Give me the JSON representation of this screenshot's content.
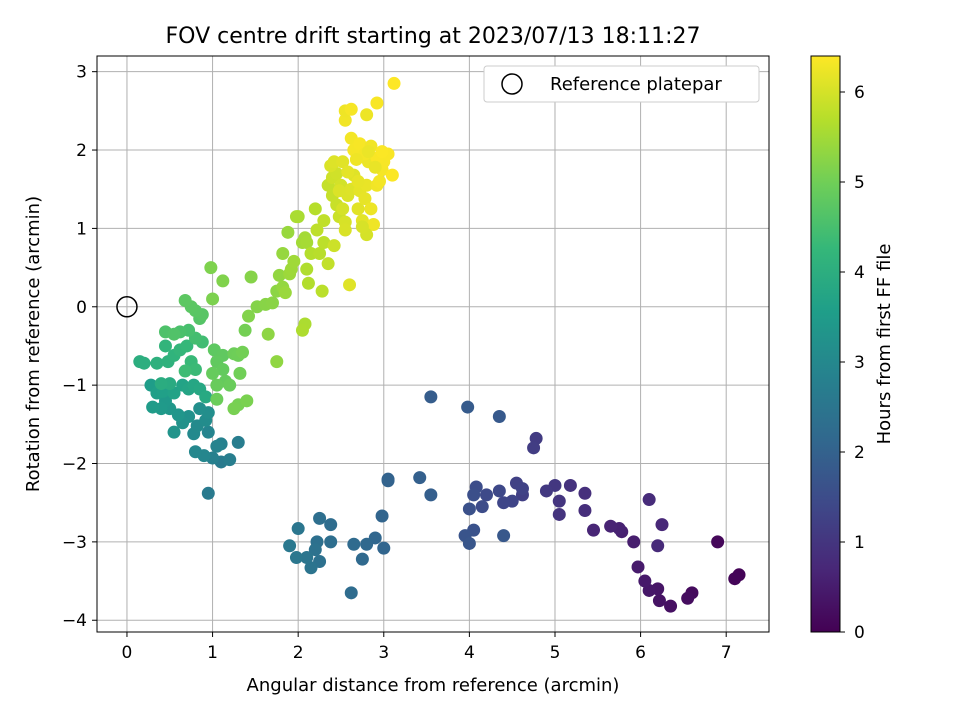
{
  "chart_data": {
    "type": "scatter",
    "title": "FOV centre drift starting at 2023/07/13 18:11:27",
    "xlabel": "Angular distance from reference (arcmin)",
    "ylabel": "Rotation from reference (arcmin)",
    "xlim": [
      -0.35,
      7.5
    ],
    "ylim": [
      -4.15,
      3.2
    ],
    "xticks": [
      0,
      1,
      2,
      3,
      4,
      5,
      6,
      7
    ],
    "yticks": [
      -4,
      -3,
      -2,
      -1,
      0,
      1,
      2,
      3
    ],
    "grid": true,
    "legend": {
      "position": "top-right",
      "entries": [
        "Reference platepar"
      ]
    },
    "reference_point": {
      "x": 0,
      "y": 0,
      "label": "Reference platepar"
    },
    "colorbar": {
      "label": "Hours from first FF file",
      "colormap": "viridis",
      "range": [
        0,
        6.4
      ],
      "ticks": [
        0,
        1,
        2,
        3,
        4,
        5,
        6
      ]
    },
    "colormap_stops": [
      "#440154",
      "#482878",
      "#3e4989",
      "#31688e",
      "#26828e",
      "#1f9e89",
      "#35b779",
      "#6ece58",
      "#b5de2b",
      "#fde725"
    ],
    "series": [
      {
        "points": [
          [
            7.15,
            -3.42,
            0.05
          ],
          [
            7.1,
            -3.47,
            0.08
          ],
          [
            6.9,
            -3.0,
            0.12
          ],
          [
            6.6,
            -3.65,
            0.18
          ],
          [
            6.55,
            -3.72,
            0.22
          ],
          [
            6.35,
            -3.82,
            0.28
          ],
          [
            6.22,
            -3.75,
            0.32
          ],
          [
            6.2,
            -3.6,
            0.36
          ],
          [
            6.1,
            -3.62,
            0.4
          ],
          [
            6.05,
            -3.5,
            0.44
          ],
          [
            5.97,
            -3.32,
            0.48
          ],
          [
            5.92,
            -3.0,
            0.52
          ],
          [
            5.78,
            -2.87,
            0.56
          ],
          [
            5.75,
            -2.83,
            0.6
          ],
          [
            5.65,
            -2.8,
            0.64
          ],
          [
            5.45,
            -2.85,
            0.68
          ],
          [
            6.25,
            -2.78,
            0.72
          ],
          [
            6.2,
            -3.05,
            0.76
          ],
          [
            6.1,
            -2.46,
            0.8
          ],
          [
            5.35,
            -2.6,
            0.84
          ],
          [
            5.35,
            -2.38,
            0.88
          ],
          [
            5.18,
            -2.28,
            0.92
          ],
          [
            5.05,
            -2.65,
            0.96
          ],
          [
            5.05,
            -2.48,
            1.0
          ],
          [
            5.0,
            -2.28,
            1.04
          ],
          [
            4.9,
            -2.35,
            1.08
          ],
          [
            4.78,
            -1.68,
            1.12
          ],
          [
            4.75,
            -1.8,
            1.16
          ],
          [
            4.62,
            -2.4,
            1.2
          ],
          [
            4.55,
            -2.25,
            1.24
          ],
          [
            4.62,
            -2.32,
            1.28
          ],
          [
            4.5,
            -2.48,
            1.32
          ],
          [
            4.4,
            -2.5,
            1.36
          ],
          [
            4.35,
            -2.35,
            1.4
          ],
          [
            4.2,
            -2.4,
            1.44
          ],
          [
            4.15,
            -2.55,
            1.48
          ],
          [
            4.08,
            -2.3,
            1.52
          ],
          [
            4.05,
            -2.4,
            1.56
          ],
          [
            4.0,
            -2.58,
            1.6
          ],
          [
            4.05,
            -2.85,
            1.64
          ],
          [
            3.95,
            -2.92,
            1.68
          ],
          [
            4.0,
            -3.02,
            1.72
          ],
          [
            4.4,
            -2.92,
            1.76
          ],
          [
            4.35,
            -1.4,
            1.8
          ],
          [
            3.98,
            -1.28,
            1.84
          ],
          [
            3.55,
            -1.15,
            1.88
          ],
          [
            3.55,
            -2.4,
            1.92
          ],
          [
            3.42,
            -2.18,
            1.96
          ],
          [
            3.05,
            -2.2,
            2.0
          ],
          [
            3.05,
            -2.22,
            2.03
          ],
          [
            2.98,
            -2.67,
            2.06
          ],
          [
            3.0,
            -3.08,
            2.09
          ],
          [
            2.9,
            -2.95,
            2.12
          ],
          [
            2.8,
            -3.03,
            2.15
          ],
          [
            2.75,
            -3.22,
            2.18
          ],
          [
            2.65,
            -3.03,
            2.21
          ],
          [
            2.62,
            -3.65,
            2.24
          ],
          [
            2.38,
            -2.78,
            2.27
          ],
          [
            2.38,
            -3.0,
            2.3
          ],
          [
            2.25,
            -2.7,
            2.33
          ],
          [
            2.22,
            -3.0,
            2.36
          ],
          [
            2.25,
            -3.25,
            2.39
          ],
          [
            2.2,
            -3.1,
            2.42
          ],
          [
            2.15,
            -3.33,
            2.45
          ],
          [
            2.1,
            -3.2,
            2.48
          ],
          [
            2.0,
            -2.83,
            2.51
          ],
          [
            1.98,
            -3.2,
            2.54
          ],
          [
            1.9,
            -3.05,
            2.57
          ],
          [
            0.95,
            -2.38,
            2.62
          ],
          [
            1.1,
            -1.98,
            2.66
          ],
          [
            1.3,
            -1.73,
            2.7
          ],
          [
            1.2,
            -1.95,
            2.74
          ],
          [
            1.0,
            -1.93,
            2.78
          ],
          [
            1.1,
            -1.75,
            2.82
          ],
          [
            1.05,
            -1.78,
            2.86
          ],
          [
            0.95,
            -1.6,
            2.9
          ],
          [
            0.9,
            -1.9,
            2.94
          ],
          [
            0.8,
            -1.85,
            2.98
          ],
          [
            0.78,
            -1.62,
            3.02
          ],
          [
            0.82,
            -1.52,
            3.06
          ],
          [
            0.92,
            -1.45,
            3.1
          ],
          [
            0.95,
            -1.35,
            3.14
          ],
          [
            0.85,
            -1.3,
            3.18
          ],
          [
            0.72,
            -1.4,
            3.22
          ],
          [
            0.65,
            -1.48,
            3.26
          ],
          [
            0.55,
            -1.6,
            3.3
          ],
          [
            0.6,
            -1.38,
            3.34
          ],
          [
            0.5,
            -1.3,
            3.38
          ],
          [
            0.45,
            -1.2,
            3.42
          ],
          [
            0.4,
            -1.3,
            3.46
          ],
          [
            0.3,
            -1.28,
            3.5
          ],
          [
            0.28,
            -1.0,
            3.54
          ],
          [
            0.35,
            -1.1,
            3.58
          ],
          [
            0.42,
            -1.08,
            3.62
          ],
          [
            0.55,
            -1.1,
            3.66
          ],
          [
            0.65,
            -1.0,
            3.7
          ],
          [
            0.72,
            -1.05,
            3.74
          ],
          [
            0.78,
            -1.0,
            3.78
          ],
          [
            0.85,
            -1.05,
            3.82
          ],
          [
            0.92,
            -1.15,
            3.86
          ],
          [
            0.5,
            -0.98,
            3.9
          ],
          [
            0.4,
            -0.98,
            3.94
          ],
          [
            0.15,
            -0.7,
            3.98
          ],
          [
            0.2,
            -0.72,
            4.02
          ],
          [
            0.35,
            -0.72,
            4.06
          ],
          [
            0.48,
            -0.7,
            4.1
          ],
          [
            0.55,
            -0.62,
            4.14
          ],
          [
            0.45,
            -0.5,
            4.18
          ],
          [
            0.62,
            -0.55,
            4.22
          ],
          [
            0.7,
            -0.5,
            4.26
          ],
          [
            0.75,
            -0.7,
            4.3
          ],
          [
            0.8,
            -0.8,
            4.34
          ],
          [
            0.68,
            -0.82,
            4.38
          ],
          [
            0.88,
            -0.45,
            4.42
          ],
          [
            0.8,
            -0.4,
            4.46
          ],
          [
            0.72,
            -0.3,
            4.5
          ],
          [
            0.62,
            -0.32,
            4.54
          ],
          [
            0.45,
            -0.32,
            4.58
          ],
          [
            0.55,
            -0.35,
            4.62
          ],
          [
            0.85,
            -0.15,
            4.66
          ],
          [
            0.88,
            -0.1,
            4.7
          ],
          [
            0.8,
            -0.05,
            4.72
          ],
          [
            0.75,
            0.0,
            4.74
          ],
          [
            0.68,
            0.08,
            4.76
          ],
          [
            1.02,
            -0.55,
            4.78
          ],
          [
            1.12,
            -0.62,
            4.8
          ],
          [
            1.05,
            -0.7,
            4.82
          ],
          [
            1.12,
            -0.8,
            4.84
          ],
          [
            1.15,
            -0.95,
            4.86
          ],
          [
            1.0,
            -0.85,
            4.88
          ],
          [
            1.05,
            -1.0,
            4.9
          ],
          [
            1.2,
            -1.0,
            4.92
          ],
          [
            1.05,
            -1.18,
            4.94
          ],
          [
            1.25,
            -0.6,
            4.96
          ],
          [
            1.3,
            -0.62,
            4.98
          ],
          [
            1.32,
            -0.85,
            5.0
          ],
          [
            1.35,
            -0.58,
            5.02
          ],
          [
            1.38,
            -0.3,
            5.04
          ],
          [
            1.3,
            -1.25,
            5.06
          ],
          [
            1.25,
            -1.3,
            5.08
          ],
          [
            1.4,
            -1.2,
            5.1
          ],
          [
            1.0,
            0.1,
            5.12
          ],
          [
            0.98,
            0.5,
            5.14
          ],
          [
            1.12,
            0.33,
            5.16
          ],
          [
            1.42,
            -0.12,
            5.18
          ],
          [
            1.52,
            0.0,
            5.2
          ],
          [
            1.45,
            0.38,
            5.22
          ],
          [
            1.62,
            0.03,
            5.24
          ],
          [
            1.7,
            0.05,
            5.26
          ],
          [
            1.75,
            0.2,
            5.28
          ],
          [
            1.65,
            -0.35,
            5.3
          ],
          [
            1.75,
            -0.7,
            5.32
          ],
          [
            1.78,
            0.4,
            5.34
          ],
          [
            1.82,
            0.25,
            5.36
          ],
          [
            1.82,
            0.68,
            5.38
          ],
          [
            1.88,
            0.95,
            5.4
          ],
          [
            1.85,
            0.18,
            5.42
          ],
          [
            1.9,
            0.42,
            5.44
          ],
          [
            1.92,
            0.48,
            5.46
          ],
          [
            1.95,
            0.58,
            5.48
          ],
          [
            2.05,
            0.82,
            5.5
          ],
          [
            2.08,
            0.88,
            5.52
          ],
          [
            2.1,
            0.82,
            5.54
          ],
          [
            2.0,
            1.15,
            5.56
          ],
          [
            1.98,
            1.15,
            5.58
          ],
          [
            2.08,
            -0.22,
            5.6
          ],
          [
            2.05,
            -0.3,
            5.62
          ],
          [
            2.1,
            0.48,
            5.64
          ],
          [
            2.12,
            0.3,
            5.66
          ],
          [
            2.15,
            0.68,
            5.68
          ],
          [
            2.2,
            1.25,
            5.7
          ],
          [
            2.25,
            0.68,
            5.72
          ],
          [
            2.28,
            0.2,
            5.74
          ],
          [
            2.3,
            0.82,
            5.76
          ],
          [
            2.22,
            0.98,
            5.78
          ],
          [
            2.3,
            1.1,
            5.8
          ],
          [
            2.35,
            0.55,
            5.82
          ],
          [
            2.35,
            1.55,
            5.84
          ],
          [
            2.4,
            1.42,
            5.86
          ],
          [
            2.45,
            1.3,
            5.88
          ],
          [
            2.48,
            1.15,
            5.9
          ],
          [
            2.42,
            0.78,
            5.92
          ],
          [
            2.4,
            1.65,
            5.94
          ],
          [
            2.45,
            1.7,
            5.96
          ],
          [
            2.5,
            1.55,
            5.98
          ],
          [
            2.52,
            1.25,
            6.0
          ],
          [
            2.55,
            1.08,
            6.02
          ],
          [
            2.55,
            0.98,
            6.04
          ],
          [
            2.58,
            1.42,
            6.06
          ],
          [
            2.62,
            1.5,
            6.08
          ],
          [
            2.65,
            1.68,
            6.1
          ],
          [
            2.7,
            1.25,
            6.12
          ],
          [
            2.75,
            1.1,
            6.14
          ],
          [
            2.72,
            1.48,
            6.16
          ],
          [
            2.78,
            1.38,
            6.18
          ],
          [
            2.8,
            1.55,
            6.2
          ],
          [
            2.82,
            1.85,
            6.22
          ],
          [
            2.85,
            1.25,
            6.24
          ],
          [
            2.88,
            1.05,
            6.26
          ],
          [
            2.92,
            1.55,
            6.28
          ],
          [
            2.95,
            1.6,
            6.3
          ],
          [
            2.98,
            1.75,
            6.32
          ],
          [
            3.0,
            1.85,
            6.34
          ],
          [
            3.05,
            1.95,
            6.36
          ],
          [
            3.1,
            1.68,
            6.38
          ],
          [
            3.12,
            2.85,
            6.4
          ],
          [
            2.92,
            2.6,
            6.35
          ],
          [
            2.62,
            2.15,
            6.3
          ],
          [
            2.65,
            2.0,
            6.32
          ],
          [
            2.55,
            2.38,
            6.28
          ],
          [
            2.55,
            2.5,
            6.26
          ],
          [
            2.62,
            2.52,
            6.33
          ],
          [
            2.72,
            2.08,
            6.34
          ],
          [
            2.78,
            1.95,
            6.3
          ],
          [
            2.85,
            2.05,
            6.28
          ],
          [
            2.92,
            1.9,
            6.36
          ],
          [
            2.98,
            1.98,
            6.38
          ],
          [
            2.6,
            0.28,
            6.1
          ],
          [
            2.38,
            1.8,
            6.05
          ],
          [
            2.42,
            1.85,
            6.08
          ],
          [
            2.52,
            1.85,
            6.12
          ],
          [
            2.7,
            1.6,
            6.18
          ],
          [
            2.8,
            0.92,
            6.0
          ],
          [
            2.75,
            1.02,
            6.02
          ],
          [
            2.9,
            1.78,
            6.2
          ],
          [
            2.82,
            1.98,
            6.22
          ],
          [
            2.58,
            1.72,
            6.15
          ],
          [
            2.48,
            1.48,
            6.06
          ],
          [
            2.8,
            2.45,
            6.24
          ],
          [
            2.68,
            1.88,
            6.26
          ]
        ]
      }
    ]
  }
}
